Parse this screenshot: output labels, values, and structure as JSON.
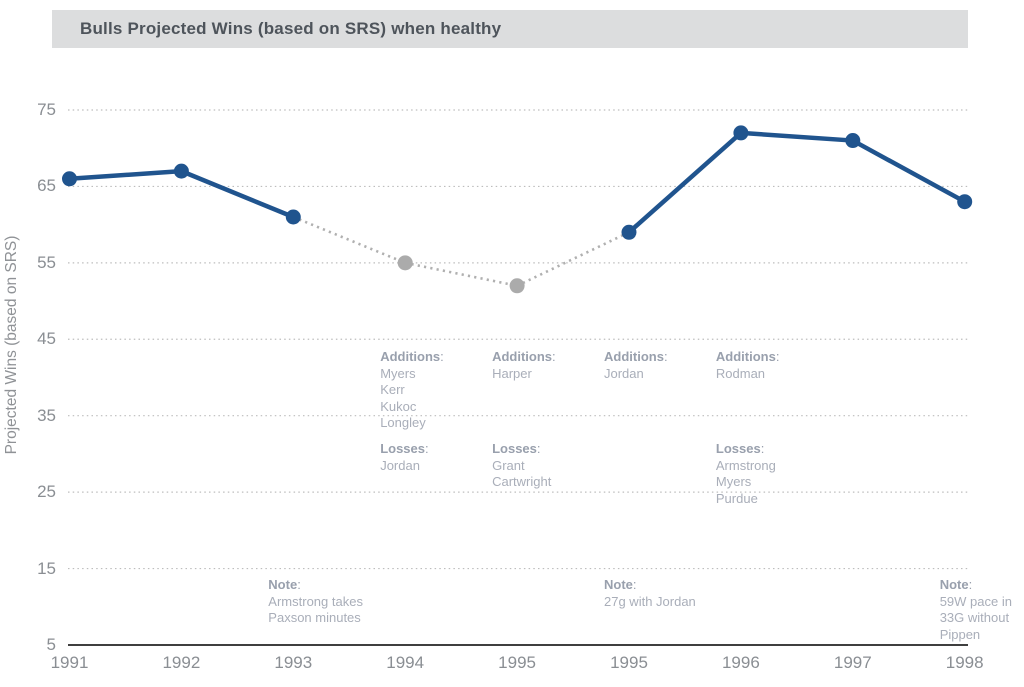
{
  "title": "Bulls Projected Wins (based on SRS) when healthy",
  "colors": {
    "line_blue": "#20548e",
    "point_gray": "#ababab",
    "connector_gray": "#b0b0b0",
    "grid_gray": "#bdbdbd",
    "axis_dark": "#3f3f3f",
    "tick_text": "#8a8e93",
    "annotation_text": "#a9aeb9",
    "annotation_heading": "#99a0ad",
    "banner_bg": "#dcddde",
    "banner_text": "#4e545b"
  },
  "chart_data": {
    "type": "line",
    "title": "Bulls Projected Wins (based on SRS) when healthy",
    "xlabel": "",
    "ylabel": "Projected Wins (based on SRS)",
    "categories": [
      "1991",
      "1992",
      "1993",
      "1994",
      "1995",
      "1995",
      "1996",
      "1997",
      "1998"
    ],
    "values": [
      66,
      67,
      61,
      55,
      52,
      59,
      72,
      71,
      63
    ],
    "point_styles": [
      "blue",
      "blue",
      "blue",
      "gray",
      "gray",
      "blue",
      "blue",
      "blue",
      "blue"
    ],
    "segment_styles": [
      "solid",
      "solid",
      "dotted",
      "dotted",
      "dotted",
      "solid",
      "solid",
      "solid"
    ],
    "yticks": [
      5,
      15,
      25,
      35,
      45,
      55,
      65,
      75
    ],
    "ylim": [
      5,
      78
    ],
    "grid": "horizontal-dotted",
    "legend": "none",
    "annotations": [
      {
        "anchor": 2,
        "kind": "note",
        "heading": "Note",
        "lines": [
          "Armstrong takes",
          "Paxson minutes"
        ]
      },
      {
        "anchor": 3,
        "kind": "additions",
        "heading": "Additions",
        "lines": [
          "Myers",
          "Kerr",
          "Kukoc",
          "Longley"
        ]
      },
      {
        "anchor": 3,
        "kind": "losses",
        "heading": "Losses",
        "lines": [
          "Jordan"
        ]
      },
      {
        "anchor": 4,
        "kind": "additions",
        "heading": "Additions",
        "lines": [
          "Harper"
        ]
      },
      {
        "anchor": 4,
        "kind": "losses",
        "heading": "Losses",
        "lines": [
          "Grant",
          "Cartwright"
        ]
      },
      {
        "anchor": 5,
        "kind": "additions",
        "heading": "Additions",
        "lines": [
          "Jordan"
        ]
      },
      {
        "anchor": 5,
        "kind": "note",
        "heading": "Note",
        "lines": [
          "27g with Jordan"
        ]
      },
      {
        "anchor": 6,
        "kind": "additions",
        "heading": "Additions",
        "lines": [
          "Rodman"
        ]
      },
      {
        "anchor": 6,
        "kind": "losses",
        "heading": "Losses",
        "lines": [
          "Armstrong",
          "Myers",
          "Purdue"
        ]
      },
      {
        "anchor": 8,
        "kind": "note",
        "heading": "Note",
        "lines": [
          "59W pace in",
          "33G without",
          "Pippen"
        ]
      }
    ]
  }
}
